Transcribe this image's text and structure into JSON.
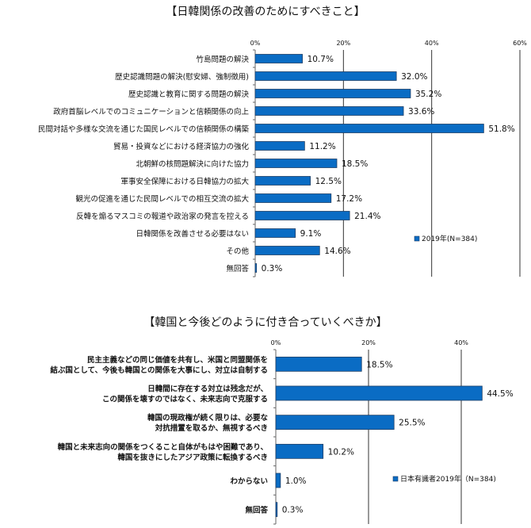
{
  "colors": {
    "bar": "#0a6cc4",
    "bar_border": "#1f3f66",
    "grid": "#333333"
  },
  "chart_data": [
    {
      "type": "bar",
      "orientation": "horizontal",
      "title": "【日韓関係の改善のためにすべきこと】",
      "xlim": [
        0,
        60
      ],
      "xticks": [
        "0%",
        "20%",
        "40%",
        "60%"
      ],
      "tick_values": [
        0,
        20,
        40,
        60
      ],
      "legend": "2019年(N=384)",
      "legend_position": "bottom-right",
      "categories": [
        "竹島問題の解決",
        "歴史認識問題の解決(慰安婦、強制徴用)",
        "歴史認識と教育に関する問題の解決",
        "政府首脳レベルでのコミュニケーションと信頼関係の向上",
        "民間対話や多様な交流を通じた国民レベルでの信頼関係の構築",
        "貿易・投資などにおける経済協力の強化",
        "北朝鮮の核問題解決に向けた協力",
        "軍事安全保障における日韓協力の拡大",
        "観光の促進を通じた民間レベルでの相互交流の拡大",
        "反韓を煽るマスコミの報道や政治家の発言を控える",
        "日韓関係を改善させる必要はない",
        "その他",
        "無回答"
      ],
      "values": [
        10.7,
        32.0,
        35.2,
        33.6,
        51.8,
        11.2,
        18.5,
        12.5,
        17.2,
        21.4,
        9.1,
        14.6,
        0.3
      ],
      "value_labels": [
        "10.7%",
        "32.0%",
        "35.2%",
        "33.6%",
        "51.8%",
        "11.2%",
        "18.5%",
        "12.5%",
        "17.2%",
        "21.4%",
        "9.1%",
        "14.6%",
        "0.3%"
      ]
    },
    {
      "type": "bar",
      "orientation": "horizontal",
      "title": "【韓国と今後どのように付き合っていくべきか】",
      "xlim": [
        0,
        60
      ],
      "xticks": [
        "0%",
        "20%",
        "40%"
      ],
      "tick_values": [
        0,
        20,
        40
      ],
      "legend": "日本有識者2019年（N=384)",
      "legend_position": "bottom-right",
      "categories": [
        [
          "民主主義などの同じ価値を共有し、米国と同盟関係を",
          "結ぶ国として、今後も韓国との関係を大事にし、対立は自制する"
        ],
        [
          "日韓間に存在する対立は残念だが、",
          "この関係を壊すのではなく、未来志向で克服する"
        ],
        [
          "韓国の現政権が続く限りは、必要な",
          "対抗措置を取るか、無視するべき"
        ],
        [
          "韓国と未来志向の関係をつくること自体がもはや困難であり、",
          "韓国を抜きにしたアジア政策に転換するべき"
        ],
        [
          "わからない"
        ],
        [
          "無回答"
        ]
      ],
      "values": [
        18.5,
        44.5,
        25.5,
        10.2,
        1.0,
        0.3
      ],
      "value_labels": [
        "18.5%",
        "44.5%",
        "25.5%",
        "10.2%",
        "1.0%",
        "0.3%"
      ]
    }
  ]
}
